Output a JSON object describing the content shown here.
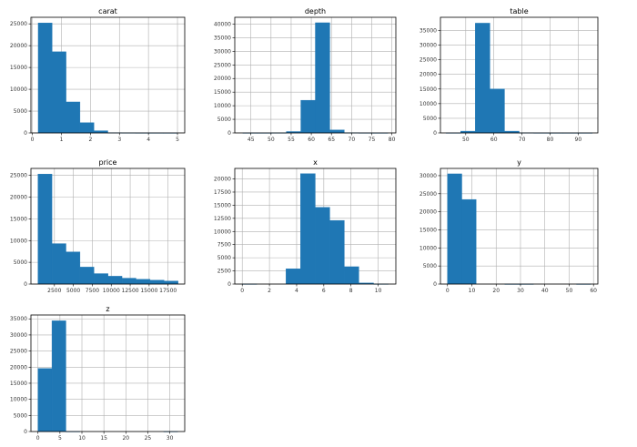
{
  "chart_data": [
    {
      "type": "bar",
      "title": "carat",
      "bins": [
        [
          0.2,
          0.68
        ],
        [
          0.68,
          1.16
        ],
        [
          1.16,
          1.64
        ],
        [
          1.64,
          2.12
        ],
        [
          2.12,
          2.6
        ],
        [
          2.6,
          3.08
        ],
        [
          3.08,
          3.56
        ],
        [
          3.56,
          4.04
        ],
        [
          4.04,
          4.52
        ],
        [
          4.52,
          5.0
        ]
      ],
      "values": [
        25200,
        18600,
        7100,
        2350,
        500,
        50,
        15,
        5,
        3,
        2
      ],
      "xlim": [
        -0.05,
        5.25
      ],
      "ylim": [
        0,
        26500
      ],
      "xticks": [
        0,
        1,
        2,
        3,
        4,
        5
      ],
      "yticks": [
        0,
        5000,
        10000,
        15000,
        20000,
        25000
      ]
    },
    {
      "type": "bar",
      "title": "depth",
      "bins": [
        [
          43,
          46.6
        ],
        [
          46.6,
          50.2
        ],
        [
          50.2,
          53.8
        ],
        [
          53.8,
          57.4
        ],
        [
          57.4,
          61
        ],
        [
          61,
          64.6
        ],
        [
          64.6,
          68.2
        ],
        [
          68.2,
          71.8
        ],
        [
          71.8,
          75.4
        ],
        [
          75.4,
          79
        ]
      ],
      "values": [
        5,
        3,
        20,
        500,
        12000,
        40500,
        1100,
        60,
        10,
        3
      ],
      "xlim": [
        41,
        81
      ],
      "ylim": [
        0,
        42500
      ],
      "xticks": [
        45,
        50,
        55,
        60,
        65,
        70,
        75,
        80
      ],
      "yticks": [
        0,
        5000,
        10000,
        15000,
        20000,
        25000,
        30000,
        35000,
        40000
      ]
    },
    {
      "type": "bar",
      "title": "table",
      "bins": [
        [
          43,
          48.2
        ],
        [
          48.2,
          53.4
        ],
        [
          53.4,
          58.6
        ],
        [
          58.6,
          63.8
        ],
        [
          63.8,
          69
        ],
        [
          69,
          74.2
        ],
        [
          74.2,
          79.4
        ],
        [
          79.4,
          84.6
        ],
        [
          84.6,
          89.8
        ],
        [
          89.8,
          95
        ]
      ],
      "values": [
        5,
        600,
        37500,
        15000,
        600,
        30,
        5,
        2,
        1,
        1
      ],
      "xlim": [
        41,
        97
      ],
      "ylim": [
        0,
        39500
      ],
      "xticks": [
        50,
        60,
        70,
        80,
        90
      ],
      "yticks": [
        0,
        5000,
        10000,
        15000,
        20000,
        25000,
        30000,
        35000
      ]
    },
    {
      "type": "bar",
      "title": "price",
      "bins": [
        [
          326,
          2175
        ],
        [
          2175,
          4024
        ],
        [
          4024,
          5874
        ],
        [
          5874,
          7723
        ],
        [
          7723,
          9572
        ],
        [
          9572,
          11421
        ],
        [
          11421,
          13270
        ],
        [
          13270,
          15120
        ],
        [
          15120,
          16969
        ],
        [
          16969,
          18818
        ]
      ],
      "values": [
        25300,
        9300,
        7400,
        3900,
        2400,
        1800,
        1350,
        1100,
        900,
        700
      ],
      "xlim": [
        -600,
        19700
      ],
      "ylim": [
        0,
        26600
      ],
      "xticks": [
        2500,
        5000,
        7500,
        10000,
        12500,
        15000,
        17500
      ],
      "yticks": [
        0,
        5000,
        10000,
        15000,
        20000,
        25000
      ]
    },
    {
      "type": "bar",
      "title": "x",
      "bins": [
        [
          0,
          1.07
        ],
        [
          1.07,
          2.15
        ],
        [
          2.15,
          3.22
        ],
        [
          3.22,
          4.29
        ],
        [
          4.29,
          5.37
        ],
        [
          5.37,
          6.44
        ],
        [
          6.44,
          7.51
        ],
        [
          7.51,
          8.58
        ],
        [
          8.58,
          9.66
        ],
        [
          9.66,
          10.74
        ]
      ],
      "values": [
        8,
        0,
        0,
        2900,
        21000,
        14600,
        12100,
        3300,
        200,
        10
      ],
      "xlim": [
        -0.55,
        11.3
      ],
      "ylim": [
        0,
        22000
      ],
      "xticks": [
        0,
        2,
        4,
        6,
        8,
        10
      ],
      "yticks": [
        0,
        2500,
        5000,
        7500,
        10000,
        12500,
        15000,
        17500,
        20000
      ]
    },
    {
      "type": "bar",
      "title": "y",
      "bins": [
        [
          0,
          5.89
        ],
        [
          5.89,
          11.78
        ],
        [
          11.78,
          17.67
        ],
        [
          17.67,
          23.56
        ],
        [
          23.56,
          29.45
        ],
        [
          29.45,
          35.34
        ],
        [
          35.34,
          41.23
        ],
        [
          41.23,
          47.12
        ],
        [
          47.12,
          53.01
        ],
        [
          53.01,
          58.9
        ]
      ],
      "values": [
        30500,
        23400,
        0,
        0,
        1,
        2,
        0,
        0,
        0,
        1
      ],
      "xlim": [
        -2.9,
        61.8
      ],
      "ylim": [
        0,
        32000
      ],
      "xticks": [
        0,
        10,
        20,
        30,
        40,
        50,
        60
      ],
      "yticks": [
        0,
        5000,
        10000,
        15000,
        20000,
        25000,
        30000
      ]
    },
    {
      "type": "bar",
      "title": "z",
      "bins": [
        [
          0,
          3.18
        ],
        [
          3.18,
          6.36
        ],
        [
          6.36,
          9.54
        ],
        [
          9.54,
          12.72
        ],
        [
          12.72,
          15.9
        ],
        [
          15.9,
          19.08
        ],
        [
          19.08,
          22.26
        ],
        [
          22.26,
          25.44
        ],
        [
          25.44,
          28.62
        ],
        [
          28.62,
          31.8
        ]
      ],
      "values": [
        19600,
        34400,
        5,
        0,
        0,
        0,
        0,
        0,
        0,
        1
      ],
      "xlim": [
        -1.6,
        33.4
      ],
      "ylim": [
        0,
        36200
      ],
      "xticks": [
        0,
        5,
        10,
        15,
        20,
        25,
        30
      ],
      "yticks": [
        0,
        5000,
        10000,
        15000,
        20000,
        25000,
        30000,
        35000
      ]
    }
  ]
}
